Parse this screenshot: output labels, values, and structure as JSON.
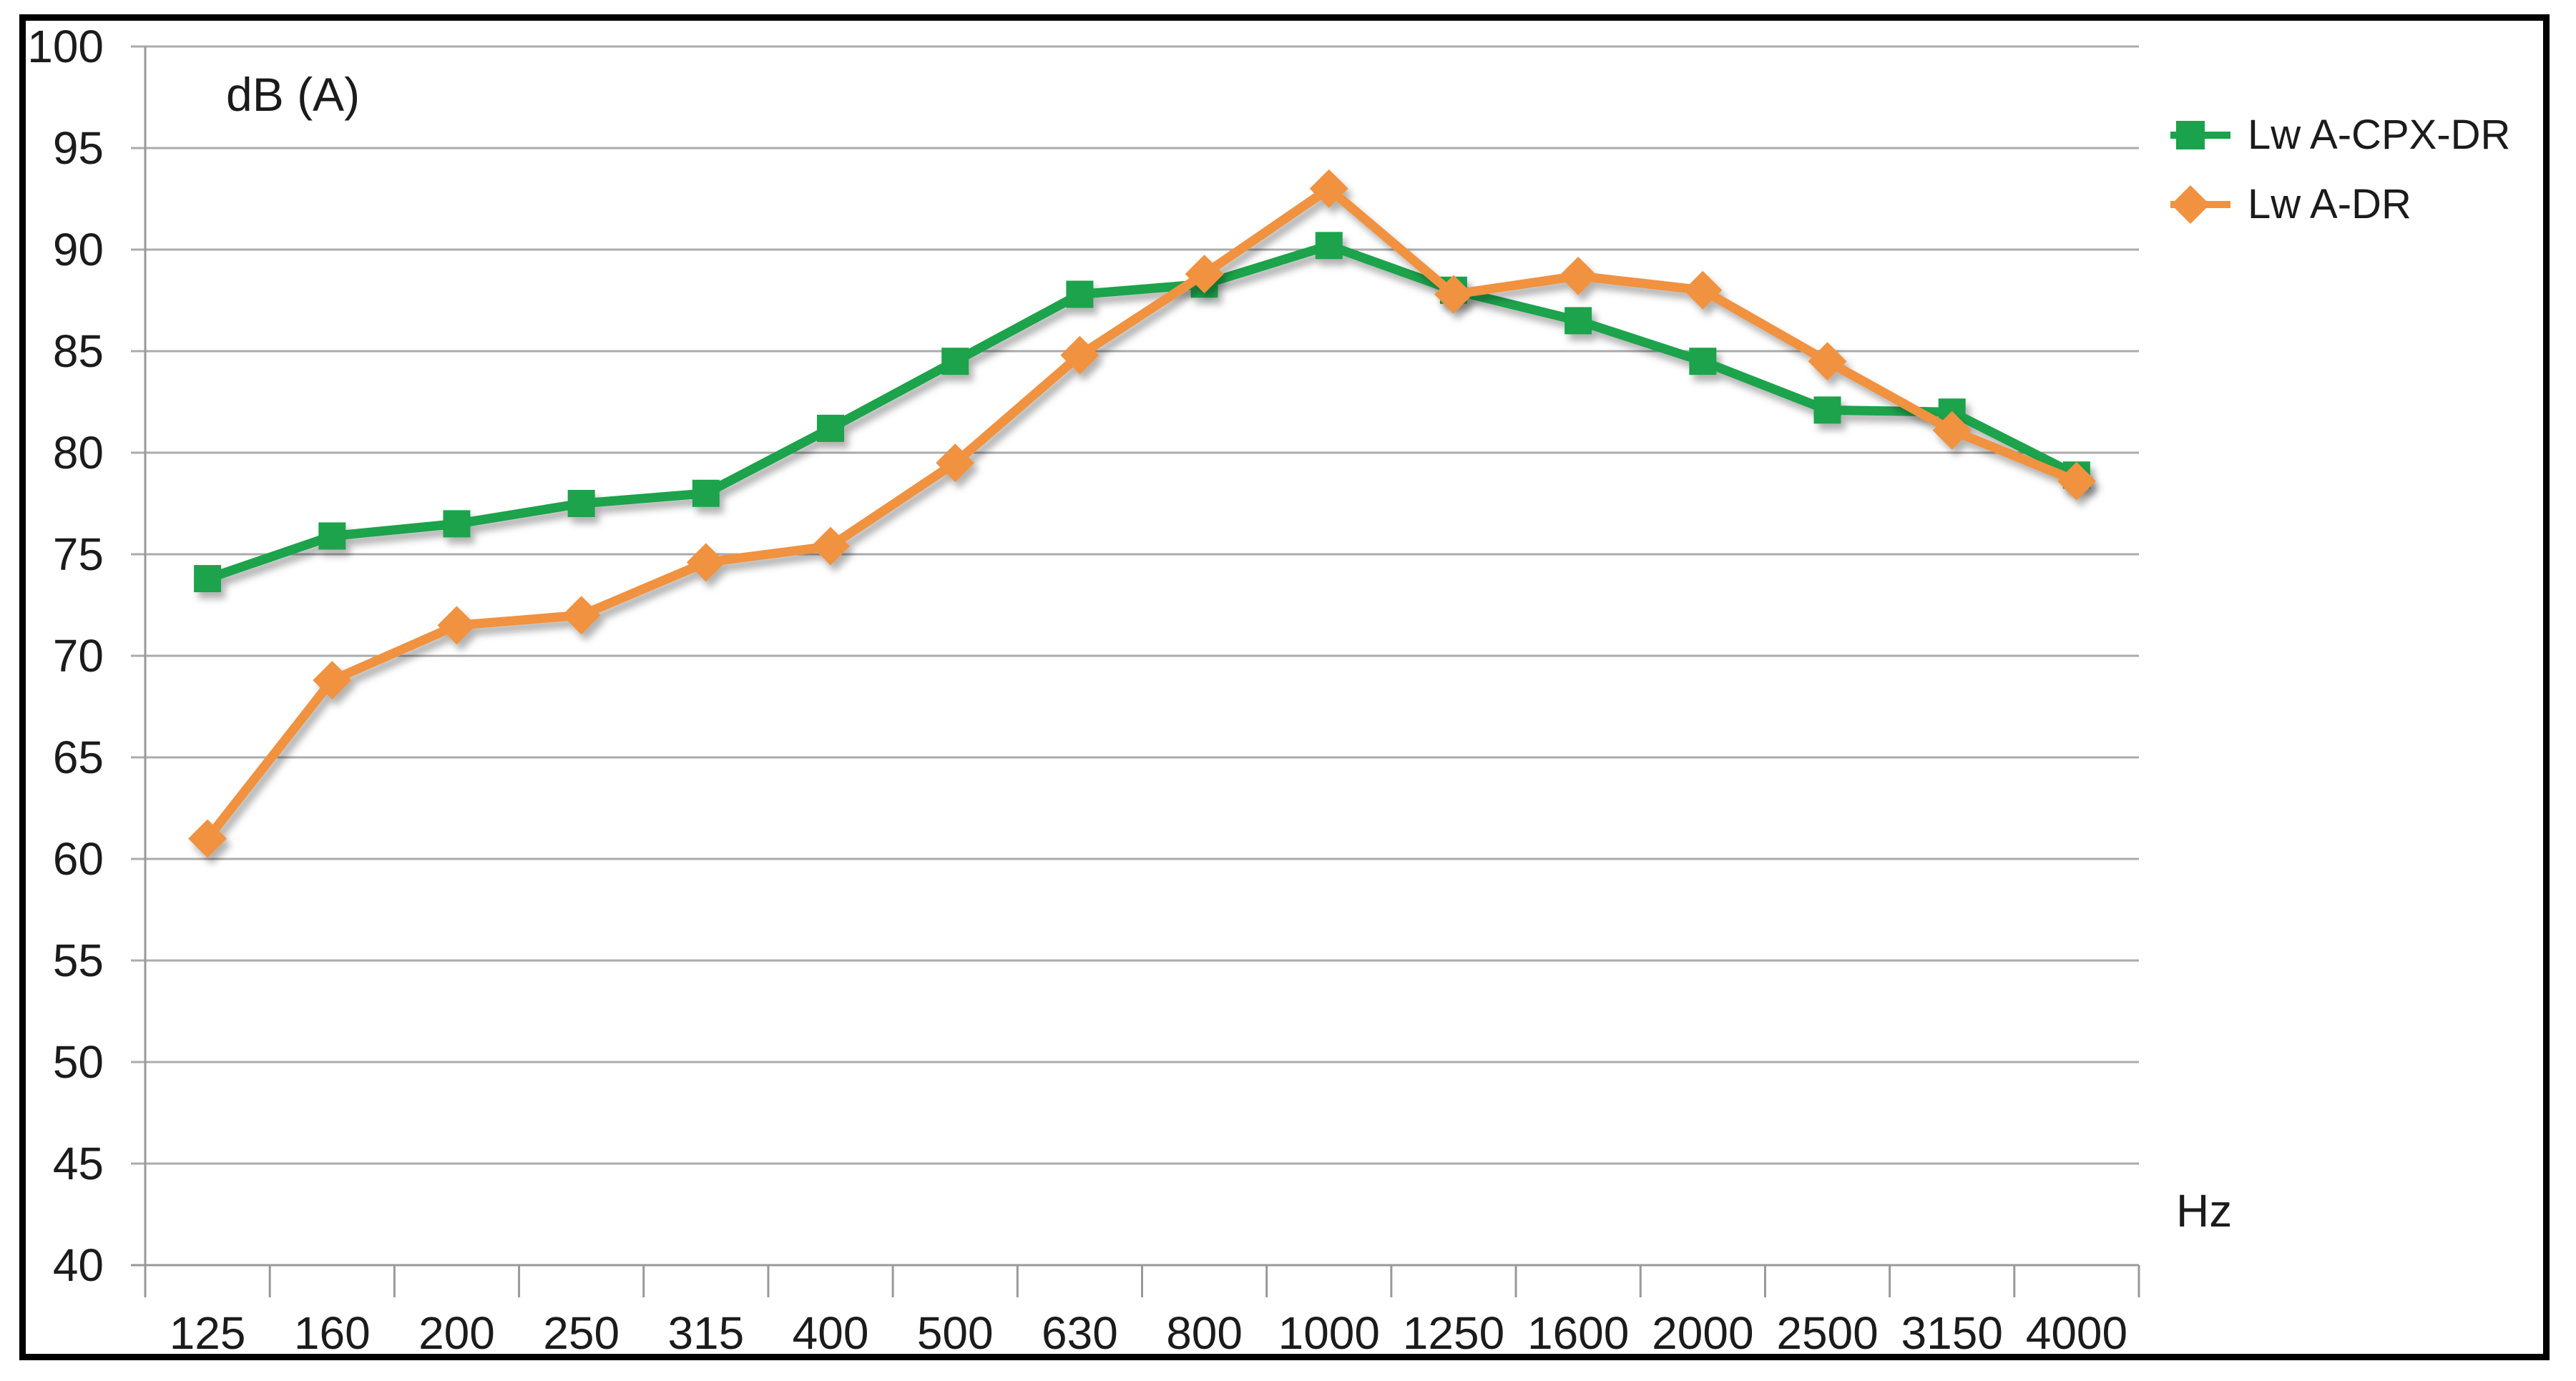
{
  "axis": {
    "y_title": "dB (A)",
    "x_title": "Hz"
  },
  "legend": [
    {
      "label": "Lw A-CPX-DR",
      "color": "#1AA34C",
      "marker": "square"
    },
    {
      "label": "Lw A-DR",
      "color": "#F0923F",
      "marker": "diamond"
    }
  ],
  "colors": {
    "series_green": "#1AA34C",
    "series_orange": "#F0923F",
    "gridline": "#ababab",
    "axis_line": "#999999",
    "frame_border": "#000000",
    "text": "#1b1b1b"
  },
  "chart_data": {
    "type": "line",
    "title": "",
    "xlabel": "Hz",
    "ylabel": "dB (A)",
    "categories": [
      "125",
      "160",
      "200",
      "250",
      "315",
      "400",
      "500",
      "630",
      "800",
      "1000",
      "1250",
      "1600",
      "2000",
      "2500",
      "3150",
      "4000"
    ],
    "series": [
      {
        "name": "Lw A-CPX-DR",
        "color": "#1AA34C",
        "marker": "square",
        "values": [
          73.8,
          75.9,
          76.5,
          77.5,
          78.0,
          81.2,
          84.5,
          87.8,
          88.3,
          90.2,
          88.0,
          86.5,
          84.5,
          82.1,
          82.0,
          78.9
        ]
      },
      {
        "name": "Lw A-DR",
        "color": "#F0923F",
        "marker": "diamond",
        "values": [
          61.0,
          68.8,
          71.5,
          72.0,
          74.6,
          75.4,
          79.5,
          84.8,
          88.8,
          93.0,
          87.8,
          88.7,
          88.0,
          84.5,
          81.1,
          78.6
        ]
      }
    ],
    "ylim": [
      40,
      100
    ],
    "ytick_step": 5,
    "yticks": [
      100,
      95,
      90,
      85,
      80,
      75,
      70,
      65,
      60,
      55,
      50,
      45,
      40
    ],
    "grid": "horizontal-only",
    "legend_position": "top-right"
  }
}
